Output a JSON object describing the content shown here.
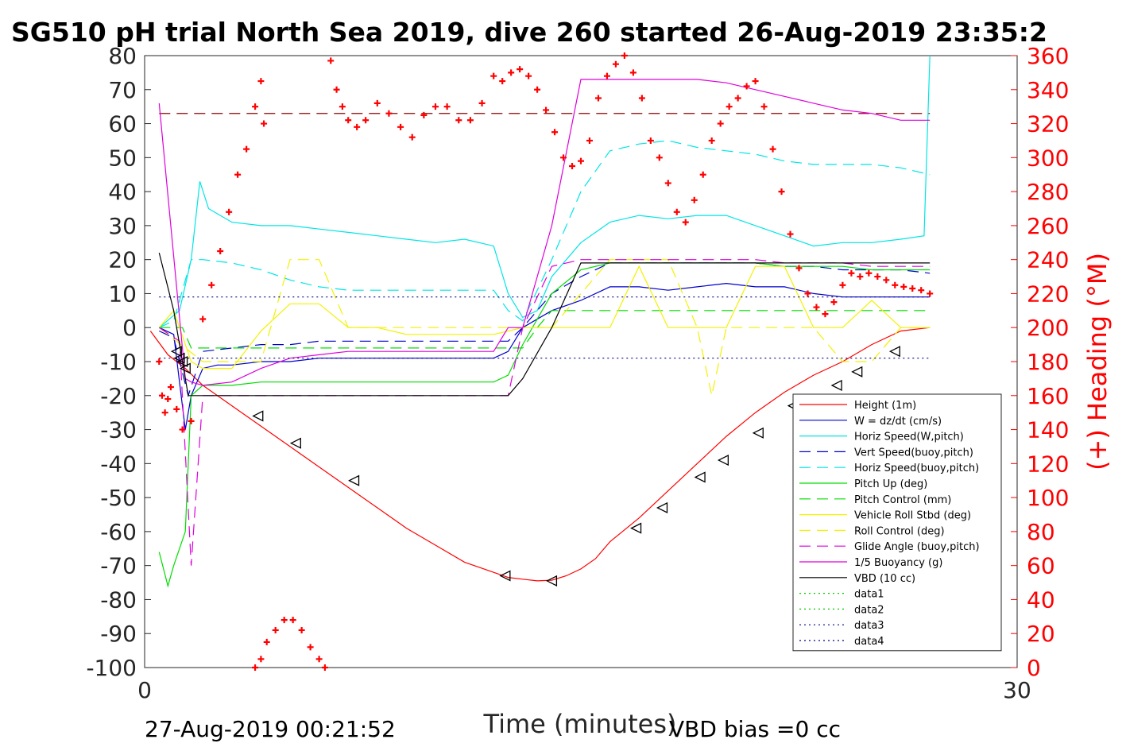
{
  "title": "SG510 pH trial North Sea 2019, dive 260 started 26-Aug-2019 23:35:2",
  "footer": {
    "end_time": "27-Aug-2019 00:21:52",
    "vbd_bias": "VBD bias =0 cc"
  },
  "chart_data": {
    "type": "line",
    "xlabel": "Time (minutes)",
    "ylabel_right": "(+) Heading (°M)",
    "xlim": [
      0,
      30
    ],
    "ylim_left": [
      -100,
      80
    ],
    "ylim_right": [
      0,
      360
    ],
    "x_ticks": [
      "0",
      "30"
    ],
    "y_ticks_left": [
      "80",
      "70",
      "60",
      "50",
      "40",
      "30",
      "20",
      "10",
      "0",
      "-10",
      "-20",
      "-30",
      "-40",
      "-50",
      "-60",
      "-70",
      "-80",
      "-90",
      "-100"
    ],
    "y_ticks_right": [
      "360",
      "340",
      "320",
      "300",
      "280",
      "260",
      "240",
      "220",
      "200",
      "180",
      "160",
      "140",
      "120",
      "100",
      "80",
      "60",
      "40",
      "20",
      "0"
    ],
    "grid": false,
    "legend_position": "bottom-right",
    "colors": {
      "red": "#ff0000",
      "blue": "#0000cc",
      "cyan": "#00e5e5",
      "green": "#00dd00",
      "yellow": "#f2f200",
      "magenta": "#dd00dd",
      "black": "#000000",
      "darkred": "#8b0000",
      "navy": "#000080"
    },
    "series": [
      {
        "name": "Height (1m)",
        "color": "#ff0000",
        "style": "solid",
        "x": [
          0.2,
          0.8,
          1.4,
          2.0,
          3.0,
          4.0,
          5.0,
          6.0,
          7.0,
          8.0,
          9.0,
          10.0,
          11.0,
          12.0,
          12.5,
          13.0,
          13.5,
          14.0,
          14.5,
          15.0,
          15.5,
          16.0,
          17.0,
          18.0,
          19.0,
          20.0,
          21.0,
          22.0,
          23.0,
          24.0,
          25.0,
          26.0,
          27.0
        ],
        "y": [
          -1,
          -8,
          -12,
          -17,
          -23,
          -29,
          -35,
          -41,
          -47,
          -53,
          -59,
          -64,
          -69,
          -72,
          -73.5,
          -74,
          -74.5,
          -74.3,
          -73,
          -71,
          -68,
          -63,
          -56,
          -48,
          -40,
          -32,
          -25,
          -19,
          -14,
          -10,
          -5,
          -1,
          0
        ]
      },
      {
        "name": "W = dz/dt (cm/s)",
        "color": "#0000cc",
        "style": "solid",
        "x": [
          0.5,
          1.0,
          1.4,
          1.6,
          2.0,
          2.5,
          3,
          4,
          5,
          6,
          7,
          8,
          9,
          10,
          11,
          12,
          12.5,
          13,
          14,
          15,
          16,
          17,
          18,
          19,
          20,
          21,
          22,
          23,
          24,
          25,
          26,
          27
        ],
        "y": [
          0,
          -2,
          -30,
          -20,
          -12,
          -11,
          -11,
          -10,
          -10,
          -9,
          -9,
          -9,
          -9,
          -9,
          -9,
          -9,
          -7,
          0,
          5,
          8,
          12,
          12,
          11,
          12,
          13,
          12,
          12,
          10,
          9,
          9,
          9,
          9
        ]
      },
      {
        "name": "Horiz Speed(W,pitch)",
        "color": "#00e5e5",
        "style": "solid",
        "x": [
          0.5,
          1.2,
          1.6,
          1.9,
          2.2,
          2.6,
          3,
          4,
          5,
          6,
          7,
          8,
          9,
          10,
          11,
          12,
          12.5,
          13,
          13.5,
          14,
          15,
          16,
          17,
          18,
          19,
          20,
          21,
          22,
          23,
          24,
          25,
          26,
          26.8,
          27
        ],
        "y": [
          0,
          5,
          20,
          43,
          35,
          33,
          31,
          30,
          30,
          29,
          28,
          27,
          26,
          25,
          26,
          24,
          10,
          3,
          5,
          15,
          25,
          31,
          33,
          32,
          33,
          33,
          30,
          27,
          24,
          25,
          25,
          26,
          27,
          80
        ]
      },
      {
        "name": "Vert Speed(buoy,pitch)",
        "color": "#0000cc",
        "style": "dashed",
        "x": [
          0.5,
          1.0,
          1.5,
          2.0,
          3,
          4,
          5,
          6,
          7,
          8,
          9,
          10,
          11,
          12,
          12.5,
          13,
          14,
          15,
          16,
          17,
          18,
          19,
          20,
          21,
          22,
          23,
          24,
          25,
          26,
          27
        ],
        "y": [
          -1,
          -3,
          -20,
          -7,
          -6,
          -5,
          -5,
          -4,
          -4,
          -4,
          -4,
          -4,
          -4,
          -4,
          -4,
          0,
          10,
          15,
          19,
          19,
          19,
          19,
          19,
          19,
          18,
          18,
          17,
          17,
          17,
          16
        ]
      },
      {
        "name": "Horiz Speed(buoy,pitch)",
        "color": "#00e5e5",
        "style": "dashed",
        "x": [
          0.5,
          1.0,
          1.6,
          2.0,
          3,
          4,
          5,
          6,
          7,
          8,
          9,
          10,
          11,
          12,
          12.5,
          13,
          14,
          15,
          16,
          17,
          18,
          19,
          20,
          21,
          22,
          23,
          24,
          25,
          26,
          27
        ],
        "y": [
          0,
          2,
          20,
          20,
          19,
          17,
          14,
          12,
          11,
          11,
          11,
          11,
          11,
          11,
          5,
          2,
          20,
          40,
          52,
          54,
          55,
          53,
          52,
          51,
          49,
          48,
          48,
          48,
          47,
          45
        ]
      },
      {
        "name": "Pitch Up (deg)",
        "color": "#00dd00",
        "style": "solid",
        "x": [
          0.5,
          0.8,
          1.0,
          1.4,
          1.6,
          2.0,
          3,
          4,
          5,
          6,
          7,
          8,
          9,
          10,
          11,
          12,
          12.5,
          13,
          14,
          15,
          16,
          17,
          18,
          19,
          20,
          21,
          22,
          23,
          24,
          25,
          26,
          27
        ],
        "y": [
          -66,
          -76,
          -70,
          -60,
          -20,
          -17,
          -17,
          -16,
          -16,
          -16,
          -16,
          -16,
          -16,
          -16,
          -16,
          -16,
          -14,
          -5,
          10,
          17,
          19,
          19,
          19,
          19,
          19,
          19,
          18,
          18,
          18,
          17,
          17,
          17
        ]
      },
      {
        "name": "Pitch Control (mm)",
        "color": "#00dd00",
        "style": "dashed",
        "x": [
          0.5,
          1.3,
          1.6,
          2.0,
          4,
          6,
          8,
          10,
          12,
          13,
          13.5,
          14,
          15,
          16,
          18,
          20,
          22,
          24,
          26,
          27
        ],
        "y": [
          0,
          0,
          -6,
          -6,
          -6,
          -6,
          -6,
          -6,
          -6,
          -6,
          0,
          5,
          5,
          5,
          5,
          5,
          5,
          5,
          5,
          5
        ]
      },
      {
        "name": "Vehicle Roll Stbd (deg)",
        "color": "#f2f200",
        "style": "solid",
        "x": [
          0.5,
          1.0,
          1.6,
          2.0,
          3,
          4,
          5,
          6,
          7,
          8,
          9,
          10,
          11,
          12,
          12.5,
          13,
          14,
          15,
          16,
          17,
          18,
          19,
          20,
          21,
          22,
          23,
          24,
          25,
          26,
          27
        ],
        "y": [
          0,
          5,
          -10,
          -12,
          -12,
          -1,
          7,
          7,
          0,
          0,
          -2,
          -2,
          -2,
          -2,
          -1,
          0,
          0,
          0,
          0,
          18,
          0,
          0,
          0,
          18,
          18,
          0,
          0,
          8,
          0,
          0
        ]
      },
      {
        "name": "Roll Control (deg)",
        "color": "#f2f200",
        "style": "dashed",
        "x": [
          0.5,
          2,
          4,
          5,
          6,
          7,
          8,
          10,
          12,
          14,
          16,
          18,
          19,
          19.5,
          20,
          21,
          22,
          23,
          24,
          25,
          26,
          27
        ],
        "y": [
          0,
          -10,
          -10,
          20,
          20,
          0,
          0,
          0,
          0,
          0,
          20,
          20,
          0,
          -20,
          0,
          0,
          0,
          0,
          -10,
          -10,
          0,
          0
        ]
      },
      {
        "name": "Glide Angle (buoy,pitch)",
        "color": "#dd00dd",
        "style": "dashed",
        "x": [
          0.5,
          1.2,
          1.6,
          2.0,
          3,
          4,
          5,
          6,
          7,
          8,
          9,
          10,
          11,
          12,
          12.5,
          13,
          14,
          15,
          16,
          17,
          18,
          19,
          20,
          21,
          22,
          23,
          24,
          25,
          26,
          27
        ],
        "y": [
          0,
          -4,
          -70,
          -20,
          -20,
          -20,
          -20,
          -20,
          -20,
          -20,
          -20,
          -20,
          -20,
          -20,
          -20,
          0,
          18,
          20,
          20,
          20,
          20,
          20,
          20,
          20,
          19,
          19,
          19,
          18,
          18,
          18
        ]
      },
      {
        "name": "1/5 Buoyancy (g)",
        "color": "#dd00dd",
        "style": "solid",
        "x": [
          0.5,
          1.4,
          1.6,
          2.0,
          3,
          4,
          5,
          6,
          7,
          8,
          9,
          10,
          11,
          12,
          12.5,
          13,
          14,
          15,
          16,
          17,
          18,
          19,
          20,
          21,
          22,
          23,
          24,
          25,
          26,
          27
        ],
        "y": [
          66,
          -15,
          -16,
          -17,
          -16,
          -12,
          -9,
          -8,
          -7,
          -7,
          -7,
          -7,
          -7,
          -7,
          0,
          0,
          30,
          73,
          73,
          73,
          73,
          73,
          72,
          70,
          68,
          66,
          64,
          63,
          61,
          61
        ]
      },
      {
        "name": "VBD (10 cc)",
        "color": "#000000",
        "style": "solid",
        "x": [
          0.5,
          1.0,
          1.5,
          2.0,
          4,
          6,
          8,
          10,
          12,
          12.5,
          13,
          14,
          15,
          16,
          18,
          20,
          22,
          24,
          26,
          27
        ],
        "y": [
          22,
          5,
          -20,
          -20,
          -20,
          -20,
          -20,
          -20,
          -20,
          -20,
          -15,
          0,
          19,
          19,
          19,
          19,
          19,
          19,
          19,
          19
        ]
      },
      {
        "name": "data1",
        "color": "#00cc00",
        "style": "dotted",
        "x": [],
        "y": []
      },
      {
        "name": "data2",
        "color": "#00cc00",
        "style": "dotted",
        "x": [],
        "y": []
      },
      {
        "name": "data3",
        "color": "#000080",
        "style": "dotted",
        "x": [
          0.5,
          27
        ],
        "y": [
          9,
          9
        ]
      },
      {
        "name": "data4",
        "color": "#000080",
        "style": "dotted",
        "x": [
          0.5,
          27
        ],
        "y": [
          -9,
          -9
        ]
      }
    ],
    "reference_line": {
      "y": 63,
      "color": "#8b0000",
      "style": "dashed"
    },
    "heading": {
      "name": "(+) Heading (°M)",
      "color": "#ff0000",
      "marker": "+",
      "x": [
        0.5,
        0.6,
        0.7,
        0.8,
        0.9,
        1.1,
        1.3,
        1.6,
        2.0,
        2.3,
        2.6,
        2.9,
        3.2,
        3.5,
        3.8,
        4.0,
        4.1,
        3.8,
        4.0,
        4.2,
        4.5,
        4.8,
        5.1,
        5.4,
        5.7,
        6.0,
        6.2,
        6.4,
        6.6,
        6.8,
        7.0,
        7.3,
        7.6,
        8.0,
        8.4,
        8.8,
        9.2,
        9.6,
        10.0,
        10.4,
        10.8,
        11.2,
        11.6,
        12.0,
        12.3,
        12.6,
        12.9,
        13.2,
        13.5,
        13.8,
        14.1,
        14.4,
        14.7,
        15.0,
        15.3,
        15.6,
        15.9,
        16.2,
        16.5,
        16.8,
        17.1,
        17.4,
        17.7,
        18.0,
        18.3,
        18.6,
        18.9,
        19.2,
        19.5,
        19.8,
        20.1,
        20.4,
        20.7,
        21.0,
        21.3,
        21.6,
        21.9,
        22.2,
        22.5,
        22.8,
        23.1,
        23.4,
        23.7,
        24.0,
        24.3,
        24.6,
        24.9,
        25.2,
        25.5,
        25.8,
        26.1,
        26.4,
        26.7,
        27.0
      ],
      "y": [
        180,
        160,
        150,
        158,
        165,
        152,
        140,
        145,
        205,
        225,
        245,
        268,
        290,
        305,
        330,
        345,
        320,
        0,
        5,
        15,
        22,
        28,
        28,
        22,
        12,
        5,
        0,
        357,
        340,
        330,
        322,
        318,
        322,
        332,
        326,
        318,
        312,
        325,
        330,
        330,
        322,
        322,
        332,
        348,
        345,
        350,
        352,
        348,
        340,
        328,
        315,
        300,
        295,
        298,
        310,
        335,
        348,
        355,
        360,
        350,
        335,
        310,
        300,
        285,
        268,
        262,
        275,
        290,
        310,
        320,
        330,
        335,
        342,
        345,
        330,
        305,
        280,
        255,
        235,
        220,
        212,
        208,
        215,
        225,
        232,
        230,
        232,
        230,
        228,
        225,
        224,
        223,
        222,
        220
      ]
    },
    "markers_triangle": {
      "x": [
        1.1,
        1.2,
        1.3,
        1.4,
        3.9,
        5.2,
        7.2,
        12.4,
        14.0,
        16.9,
        17.8,
        19.1,
        19.9,
        21.1,
        22.3,
        23.8,
        24.5,
        25.8
      ],
      "y": [
        -7,
        -9,
        -10,
        -12,
        -26,
        -34,
        -45,
        -73,
        -74.5,
        -59,
        -53,
        -44,
        -39,
        -31,
        -23,
        -17,
        -13,
        -7
      ]
    }
  },
  "legend": {
    "items": [
      {
        "label": "Height (1m)",
        "color": "#ff0000",
        "style": "solid"
      },
      {
        "label": "W = dz/dt (cm/s)",
        "color": "#0000cc",
        "style": "solid"
      },
      {
        "label": "Horiz Speed(W,pitch)",
        "color": "#00e5e5",
        "style": "solid"
      },
      {
        "label": "Vert Speed(buoy,pitch)",
        "color": "#0000cc",
        "style": "dashed"
      },
      {
        "label": "Horiz Speed(buoy,pitch)",
        "color": "#00e5e5",
        "style": "dashed"
      },
      {
        "label": "Pitch Up (deg)",
        "color": "#00dd00",
        "style": "solid"
      },
      {
        "label": "Pitch Control (mm)",
        "color": "#00dd00",
        "style": "dashed"
      },
      {
        "label": "Vehicle Roll Stbd (deg)",
        "color": "#f2f200",
        "style": "solid"
      },
      {
        "label": "Roll Control (deg)",
        "color": "#f2f200",
        "style": "dashed"
      },
      {
        "label": "Glide Angle (buoy,pitch)",
        "color": "#dd00dd",
        "style": "dashed"
      },
      {
        "label": "1/5 Buoyancy (g)",
        "color": "#dd00dd",
        "style": "solid"
      },
      {
        "label": "VBD (10 cc)",
        "color": "#000000",
        "style": "solid"
      },
      {
        "label": "data1",
        "color": "#00cc00",
        "style": "dotted"
      },
      {
        "label": "data2",
        "color": "#00cc00",
        "style": "dotted"
      },
      {
        "label": "data3",
        "color": "#000080",
        "style": "dotted"
      },
      {
        "label": "data4",
        "color": "#000080",
        "style": "dotted"
      }
    ]
  }
}
